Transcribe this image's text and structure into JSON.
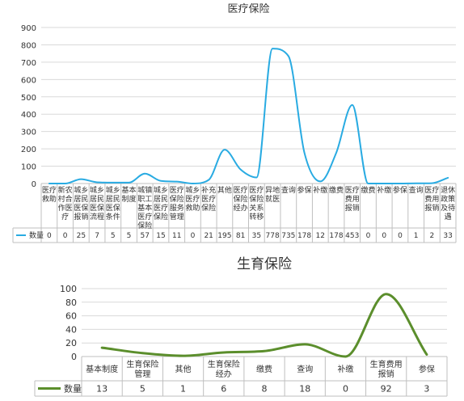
{
  "chart_data": [
    {
      "type": "line",
      "title": "医疗保险",
      "ylim": [
        0,
        900
      ],
      "yticks": [
        0,
        100,
        200,
        300,
        400,
        500,
        600,
        700,
        800,
        900
      ],
      "categories": [
        "医疗救助",
        "新农村合作医疗",
        "城乡居民医保报销",
        "城乡居民医保流程",
        "城乡居民医保条件",
        "基本制度",
        "城镇职工基本医疗保险",
        "城乡居民医疗保险",
        "医疗保险服务管理",
        "城乡医疗救助",
        "补充医疗保险",
        "其他",
        "医疗保险经办",
        "医疗保险关系转移",
        "异地就医",
        "查询",
        "参保",
        "补缴",
        "缴费",
        "医疗费用报销",
        "缴费",
        "补缴",
        "参保",
        "查询",
        "医疗费用报销",
        "退休政策及待遇"
      ],
      "series": [
        {
          "name": "数量",
          "color": "#29abe2",
          "values": [
            0,
            0,
            25,
            7,
            5,
            5,
            57,
            15,
            11,
            0,
            21,
            195,
            81,
            35,
            778,
            735,
            178,
            12,
            178,
            453,
            0,
            0,
            0,
            1,
            2,
            33
          ]
        }
      ],
      "grid": true,
      "legend": "left of table"
    },
    {
      "type": "line",
      "title": "生育保险",
      "ylim": [
        0,
        100
      ],
      "yticks": [
        0,
        20,
        40,
        60,
        80,
        100
      ],
      "categories": [
        "基本制度",
        "生育保险管理",
        "其他",
        "生育保险经办",
        "缴费",
        "查询",
        "补缴",
        "生育费用报销",
        "参保"
      ],
      "series": [
        {
          "name": "数量",
          "color": "#5b8e2c",
          "values": [
            13,
            5,
            1,
            6,
            8,
            18,
            0,
            92,
            3
          ]
        }
      ],
      "grid": true,
      "legend": "left of table"
    }
  ]
}
